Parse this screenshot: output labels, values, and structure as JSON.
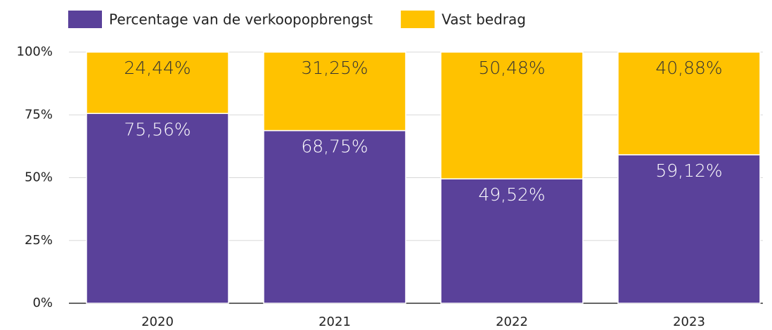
{
  "chart_data": {
    "type": "stacked_bar",
    "categories": [
      "2020",
      "2021",
      "2022",
      "2023"
    ],
    "series": [
      {
        "name": "Percentage van de verkoopopbrengst",
        "color": "#5a419a",
        "values": [
          75.56,
          68.75,
          49.52,
          59.12
        ],
        "value_labels": [
          "75,56%",
          "68,75%",
          "49,52%",
          "59,12%"
        ],
        "label_color": "#ffffff"
      },
      {
        "name": "Vast bedrag",
        "color": "#ffc200",
        "values": [
          24.44,
          31.25,
          50.48,
          40.88
        ],
        "value_labels": [
          "24,44%",
          "31,25%",
          "50,48%",
          "40,88%"
        ],
        "label_color": "#333333"
      }
    ],
    "ylim": [
      0,
      100
    ],
    "yticks": [
      {
        "value": 0,
        "label": "0%"
      },
      {
        "value": 25,
        "label": "25%"
      },
      {
        "value": 50,
        "label": "50%"
      },
      {
        "value": 75,
        "label": "75%"
      },
      {
        "value": 100,
        "label": "100%"
      }
    ],
    "grid": true,
    "legend": "top"
  }
}
